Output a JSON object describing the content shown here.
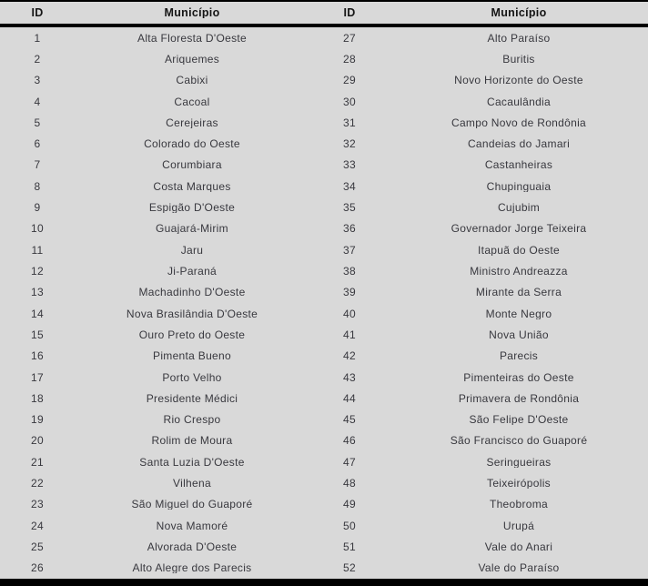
{
  "colors": {
    "page_background": "#d9d9d9",
    "rule_color": "#000000",
    "header_text": "#151515",
    "body_text": "#38383e"
  },
  "table": {
    "headers": [
      "ID",
      "Município",
      "ID",
      "Município"
    ],
    "rows": [
      {
        "id_left": "1",
        "name_left": "Alta Floresta D'Oeste",
        "id_right": "27",
        "name_right": "Alto Paraíso"
      },
      {
        "id_left": "2",
        "name_left": "Ariquemes",
        "id_right": "28",
        "name_right": "Buritis"
      },
      {
        "id_left": "3",
        "name_left": "Cabixi",
        "id_right": "29",
        "name_right": "Novo Horizonte do Oeste"
      },
      {
        "id_left": "4",
        "name_left": "Cacoal",
        "id_right": "30",
        "name_right": "Cacaulândia"
      },
      {
        "id_left": "5",
        "name_left": "Cerejeiras",
        "id_right": "31",
        "name_right": "Campo Novo de Rondônia"
      },
      {
        "id_left": "6",
        "name_left": "Colorado do Oeste",
        "id_right": "32",
        "name_right": "Candeias do Jamari"
      },
      {
        "id_left": "7",
        "name_left": "Corumbiara",
        "id_right": "33",
        "name_right": "Castanheiras"
      },
      {
        "id_left": "8",
        "name_left": "Costa Marques",
        "id_right": "34",
        "name_right": "Chupinguaia"
      },
      {
        "id_left": "9",
        "name_left": "Espigão D'Oeste",
        "id_right": "35",
        "name_right": "Cujubim"
      },
      {
        "id_left": "10",
        "name_left": "Guajará-Mirim",
        "id_right": "36",
        "name_right": "Governador Jorge Teixeira"
      },
      {
        "id_left": "11",
        "name_left": "Jaru",
        "id_right": "37",
        "name_right": "Itapuã do Oeste"
      },
      {
        "id_left": "12",
        "name_left": "Ji-Paraná",
        "id_right": "38",
        "name_right": "Ministro Andreazza"
      },
      {
        "id_left": "13",
        "name_left": "Machadinho D'Oeste",
        "id_right": "39",
        "name_right": "Mirante da Serra"
      },
      {
        "id_left": "14",
        "name_left": "Nova Brasilândia D'Oeste",
        "id_right": "40",
        "name_right": "Monte Negro"
      },
      {
        "id_left": "15",
        "name_left": "Ouro Preto do Oeste",
        "id_right": "41",
        "name_right": "Nova União"
      },
      {
        "id_left": "16",
        "name_left": "Pimenta Bueno",
        "id_right": "42",
        "name_right": "Parecis"
      },
      {
        "id_left": "17",
        "name_left": "Porto Velho",
        "id_right": "43",
        "name_right": "Pimenteiras do Oeste"
      },
      {
        "id_left": "18",
        "name_left": "Presidente Médici",
        "id_right": "44",
        "name_right": "Primavera de Rondônia"
      },
      {
        "id_left": "19",
        "name_left": "Rio Crespo",
        "id_right": "45",
        "name_right": "São Felipe D'Oeste"
      },
      {
        "id_left": "20",
        "name_left": "Rolim de Moura",
        "id_right": "46",
        "name_right": "São Francisco do Guaporé"
      },
      {
        "id_left": "21",
        "name_left": "Santa Luzia D'Oeste",
        "id_right": "47",
        "name_right": "Seringueiras"
      },
      {
        "id_left": "22",
        "name_left": "Vilhena",
        "id_right": "48",
        "name_right": "Teixeirópolis"
      },
      {
        "id_left": "23",
        "name_left": "São Miguel do Guaporé",
        "id_right": "49",
        "name_right": "Theobroma"
      },
      {
        "id_left": "24",
        "name_left": "Nova Mamoré",
        "id_right": "50",
        "name_right": "Urupá"
      },
      {
        "id_left": "25",
        "name_left": "Alvorada D'Oeste",
        "id_right": "51",
        "name_right": "Vale do Anari"
      },
      {
        "id_left": "26",
        "name_left": "Alto Alegre dos Parecis",
        "id_right": "52",
        "name_right": "Vale do Paraíso"
      }
    ]
  }
}
